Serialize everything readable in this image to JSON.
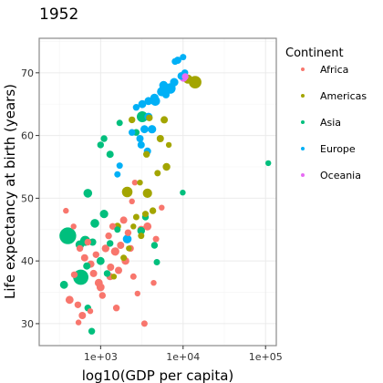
{
  "chart_data": {
    "type": "scatter",
    "title": "1952",
    "xlabel": "log10(GDP per capita)",
    "ylabel": "Life expectancy at birth (years)",
    "x_scale": "log10",
    "xlim": [
      180,
      135000
    ],
    "ylim": [
      26.5,
      75.5
    ],
    "x_ticks": [
      1000,
      10000,
      100000
    ],
    "x_tick_labels": [
      "1e+03",
      "1e+04",
      "1e+05"
    ],
    "y_ticks": [
      30,
      40,
      50,
      60,
      70
    ],
    "y_tick_labels": [
      "30",
      "40",
      "50",
      "60",
      "70"
    ],
    "grid": true,
    "legend": {
      "title": "Continent",
      "position": "right",
      "entries": [
        {
          "name": "Africa",
          "color": "#F8766D"
        },
        {
          "name": "Americas",
          "color": "#A3A500"
        },
        {
          "name": "Asia",
          "color": "#00BF7D"
        },
        {
          "name": "Europe",
          "color": "#00B0F6"
        },
        {
          "name": "Oceania",
          "color": "#E76BF3"
        }
      ]
    },
    "series": [
      {
        "name": "Africa",
        "color": "#F8766D",
        "points": [
          [
            380,
            48.0,
            0.3
          ],
          [
            470,
            45.5,
            0.3
          ],
          [
            560,
            42.0,
            0.5
          ],
          [
            640,
            40.5,
            0.6
          ],
          [
            700,
            43.0,
            0.5
          ],
          [
            760,
            39.5,
            0.6
          ],
          [
            820,
            38.0,
            0.6
          ],
          [
            880,
            41.0,
            0.5
          ],
          [
            950,
            36.5,
            0.8
          ],
          [
            1000,
            35.8,
            0.8
          ],
          [
            1150,
            42.0,
            0.7
          ],
          [
            1250,
            44.0,
            0.5
          ],
          [
            1320,
            39.0,
            0.6
          ],
          [
            1400,
            45.5,
            0.5
          ],
          [
            1500,
            41.5,
            0.9
          ],
          [
            1650,
            38.5,
            0.6
          ],
          [
            1750,
            42.5,
            0.6
          ],
          [
            1900,
            46.5,
            0.6
          ],
          [
            2000,
            40.0,
            0.7
          ],
          [
            2150,
            44.5,
            0.5
          ],
          [
            2300,
            42.0,
            0.5
          ],
          [
            2500,
            37.5,
            0.4
          ],
          [
            3100,
            45.0,
            0.7
          ],
          [
            3700,
            45.5,
            0.8
          ],
          [
            4700,
            43.5,
            0.4
          ],
          [
            5500,
            48.5,
            0.3
          ],
          [
            3400,
            30.0,
            0.4
          ],
          [
            1550,
            32.5,
            0.5
          ],
          [
            1300,
            37.5,
            0.6
          ],
          [
            480,
            37.8,
            0.5
          ],
          [
            420,
            33.8,
            0.8
          ],
          [
            530,
            33.0,
            0.5
          ],
          [
            600,
            31.3,
            0.6
          ],
          [
            750,
            32.0,
            0.3
          ],
          [
            540,
            30.2,
            0.3
          ],
          [
            1050,
            34.5,
            0.5
          ],
          [
            2800,
            34.8,
            0.3
          ],
          [
            4400,
            36.5,
            0.3
          ],
          [
            2600,
            52.5,
            0.3
          ],
          [
            2400,
            49.5,
            0.3
          ]
        ]
      },
      {
        "name": "Americas",
        "color": "#A3A500",
        "points": [
          [
            14000,
            68.5,
            2.5
          ],
          [
            11400,
            69.0,
            1.2
          ],
          [
            5900,
            62.5,
            0.6
          ],
          [
            5300,
            59.5,
            0.6
          ],
          [
            3900,
            62.8,
            0.5
          ],
          [
            3600,
            57.0,
            0.5
          ],
          [
            2400,
            62.5,
            0.5
          ],
          [
            2100,
            51.0,
            1.6
          ],
          [
            3700,
            50.8,
            1.2
          ],
          [
            6300,
            55.0,
            0.7
          ],
          [
            4300,
            48.0,
            0.5
          ],
          [
            3500,
            47.5,
            0.4
          ],
          [
            2700,
            47.0,
            0.4
          ],
          [
            2500,
            45.5,
            0.3
          ],
          [
            3100,
            44.0,
            0.4
          ],
          [
            1900,
            40.5,
            0.4
          ],
          [
            3000,
            52.5,
            0.3
          ],
          [
            4900,
            54.0,
            0.4
          ],
          [
            6700,
            58.5,
            0.3
          ],
          [
            2200,
            42.0,
            0.3
          ],
          [
            1600,
            45.5,
            0.6
          ],
          [
            1450,
            37.5,
            0.3
          ]
        ]
      },
      {
        "name": "Asia",
        "color": "#00BF7D",
        "points": [
          [
            400,
            44.0,
            5.0
          ],
          [
            575,
            37.4,
            4.0
          ],
          [
            3200,
            63.0,
            1.8
          ],
          [
            1100,
            47.5,
            0.9
          ],
          [
            700,
            50.8,
            1.0
          ],
          [
            850,
            46.0,
            1.0
          ],
          [
            650,
            43.2,
            1.4
          ],
          [
            560,
            42.6,
            1.0
          ],
          [
            1000,
            40.0,
            0.8
          ],
          [
            680,
            39.2,
            0.6
          ],
          [
            360,
            36.2,
            0.8
          ],
          [
            800,
            43.0,
            0.6
          ],
          [
            1300,
            57.0,
            0.6
          ],
          [
            1000,
            58.5,
            0.5
          ],
          [
            1100,
            59.5,
            0.5
          ],
          [
            1600,
            45.0,
            0.4
          ],
          [
            3100,
            44.8,
            0.7
          ],
          [
            3500,
            47.0,
            0.5
          ],
          [
            4500,
            42.5,
            0.5
          ],
          [
            4800,
            39.8,
            0.4
          ],
          [
            9900,
            50.9,
            0.3
          ],
          [
            108000,
            55.6,
            0.3
          ],
          [
            2700,
            60.5,
            0.5
          ],
          [
            1700,
            62.0,
            0.4
          ],
          [
            700,
            32.5,
            0.5
          ],
          [
            780,
            28.8,
            0.5
          ],
          [
            1300,
            42.8,
            0.5
          ],
          [
            1200,
            38.0,
            0.5
          ]
        ]
      },
      {
        "name": "Europe",
        "color": "#00B0F6",
        "points": [
          [
            8600,
            72.0,
            0.6
          ],
          [
            10000,
            72.5,
            0.4
          ],
          [
            8000,
            71.8,
            0.5
          ],
          [
            9500,
            69.5,
            0.7
          ],
          [
            7000,
            67.5,
            1.6
          ],
          [
            7800,
            68.5,
            0.9
          ],
          [
            5800,
            68.0,
            1.0
          ],
          [
            5500,
            67.0,
            1.2
          ],
          [
            4500,
            66.0,
            0.9
          ],
          [
            3800,
            65.5,
            0.8
          ],
          [
            3200,
            65.0,
            0.8
          ],
          [
            3800,
            63.0,
            0.8
          ],
          [
            3400,
            61.0,
            0.8
          ],
          [
            4200,
            61.0,
            0.9
          ],
          [
            3100,
            58.5,
            0.6
          ],
          [
            3000,
            59.5,
            0.6
          ],
          [
            3700,
            57.5,
            0.6
          ],
          [
            2400,
            60.5,
            0.5
          ],
          [
            2700,
            64.5,
            0.5
          ],
          [
            1700,
            55.2,
            0.4
          ],
          [
            1600,
            53.8,
            0.4
          ],
          [
            2100,
            43.5,
            1.0
          ],
          [
            4600,
            65.5,
            1.3
          ],
          [
            6200,
            66.5,
            0.6
          ],
          [
            10500,
            70.0,
            0.5
          ]
        ]
      },
      {
        "name": "Oceania",
        "color": "#E76BF3",
        "points": [
          [
            10100,
            69.2,
            0.8
          ],
          [
            10600,
            69.4,
            0.5
          ]
        ]
      }
    ]
  }
}
